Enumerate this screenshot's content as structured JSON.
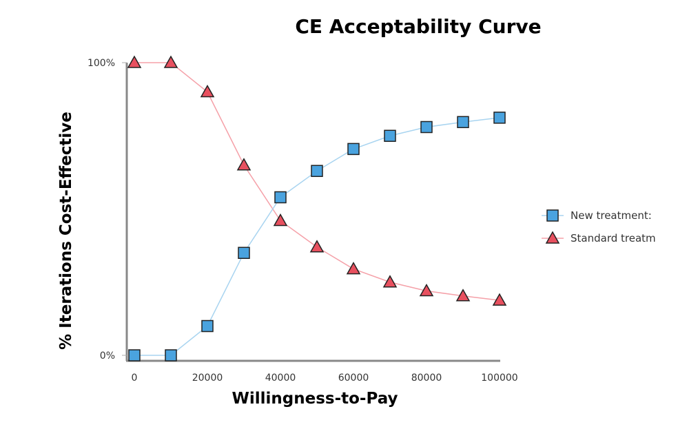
{
  "chart_data": {
    "type": "line",
    "title": "CE Acceptability Curve",
    "xlabel": "Willingness-to-Pay",
    "ylabel": "% Iterations Cost-Effective",
    "x": [
      0,
      10000,
      20000,
      30000,
      40000,
      50000,
      60000,
      70000,
      80000,
      90000,
      100000
    ],
    "xlim": [
      0,
      100000
    ],
    "ylim": [
      0,
      100
    ],
    "xticks": [
      "0",
      "20000",
      "40000",
      "60000",
      "80000",
      "100000"
    ],
    "xtick_values": [
      0,
      20000,
      40000,
      60000,
      80000,
      100000
    ],
    "yticks": [
      "0%",
      "100%"
    ],
    "ytick_values": [
      0,
      100
    ],
    "grid": false,
    "legend_position": "right",
    "series": [
      {
        "name": "New treatment:",
        "marker": "square",
        "line_color": "#a8d4f0",
        "marker_color": "#4aa3df",
        "values": [
          0,
          0,
          10,
          35,
          54,
          63,
          70.5,
          75,
          78,
          79.7,
          81.2
        ]
      },
      {
        "name": "Standard treatm",
        "marker": "triangle",
        "line_color": "#f5a0a8",
        "marker_color": "#e8505f",
        "values": [
          100,
          100,
          90,
          65,
          46,
          37,
          29.5,
          25,
          22,
          20.3,
          18.8
        ]
      }
    ]
  }
}
